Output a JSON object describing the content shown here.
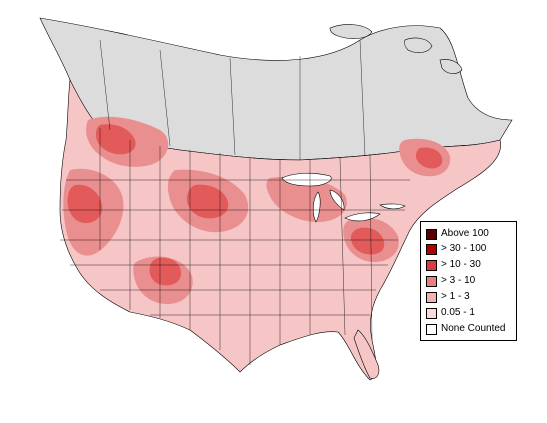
{
  "legend": {
    "items": [
      {
        "label": "Above 100",
        "color": "#5a0000"
      },
      {
        "label": "> 30 - 100",
        "color": "#b00000"
      },
      {
        "label": "> 10 - 30",
        "color": "#e0393d"
      },
      {
        "label": "> 3 - 10",
        "color": "#ea7f7f"
      },
      {
        "label": "> 1 - 3",
        "color": "#f4b3b3"
      },
      {
        "label": "0.05 - 1",
        "color": "#fbdada"
      },
      {
        "label": "None Counted",
        "color": "#ffffff"
      }
    ]
  },
  "colors": {
    "no_data_region": "#dcdcdc",
    "ocean": "#ffffff",
    "boundary": "#000000"
  }
}
